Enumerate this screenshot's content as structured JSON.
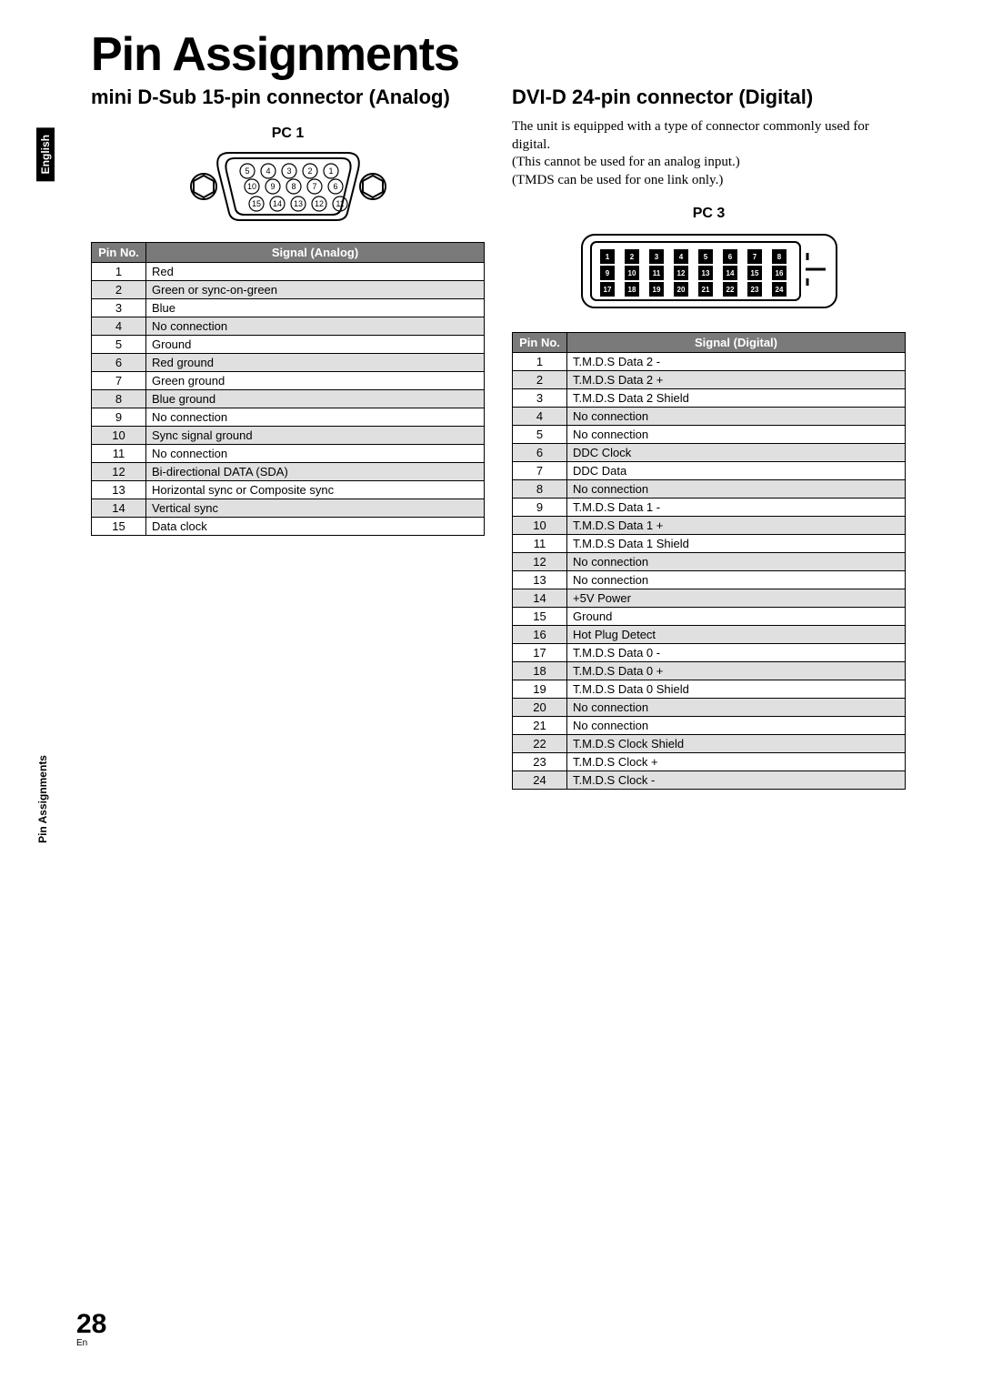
{
  "side_tabs": {
    "english": "English",
    "pin_assignments": "Pin Assignments"
  },
  "page_title": "Pin Assignments",
  "left": {
    "title": "mini D-Sub 15-pin connector (Analog)",
    "pc_label": "PC 1",
    "table_headers": {
      "pin": "Pin No.",
      "signal": "Signal (Analog)"
    },
    "pins": [
      {
        "n": "1",
        "s": "Red"
      },
      {
        "n": "2",
        "s": "Green or sync-on-green"
      },
      {
        "n": "3",
        "s": "Blue"
      },
      {
        "n": "4",
        "s": "No connection"
      },
      {
        "n": "5",
        "s": "Ground"
      },
      {
        "n": "6",
        "s": "Red ground"
      },
      {
        "n": "7",
        "s": "Green ground"
      },
      {
        "n": "8",
        "s": "Blue ground"
      },
      {
        "n": "9",
        "s": "No connection"
      },
      {
        "n": "10",
        "s": "Sync signal ground"
      },
      {
        "n": "11",
        "s": "No connection"
      },
      {
        "n": "12",
        "s": "Bi-directional DATA (SDA)"
      },
      {
        "n": "13",
        "s": "Horizontal sync or Composite sync"
      },
      {
        "n": "14",
        "s": "Vertical sync"
      },
      {
        "n": "15",
        "s": "Data clock"
      }
    ],
    "diagram": {
      "rows": [
        [
          "5",
          "4",
          "3",
          "2",
          "1"
        ],
        [
          "10",
          "9",
          "8",
          "7",
          "6"
        ],
        [
          "15",
          "14",
          "13",
          "12",
          "11"
        ]
      ]
    }
  },
  "right": {
    "title": "DVI-D 24-pin connector (Digital)",
    "body": [
      "The unit is equipped with a type of connector commonly used for digital.",
      "(This cannot be used for an analog input.)",
      "(TMDS can be used for one link only.)"
    ],
    "pc_label": "PC 3",
    "table_headers": {
      "pin": "Pin No.",
      "signal": "Signal (Digital)"
    },
    "pins": [
      {
        "n": "1",
        "s": "T.M.D.S Data 2 -"
      },
      {
        "n": "2",
        "s": "T.M.D.S Data 2 +"
      },
      {
        "n": "3",
        "s": "T.M.D.S Data 2 Shield"
      },
      {
        "n": "4",
        "s": "No connection"
      },
      {
        "n": "5",
        "s": "No connection"
      },
      {
        "n": "6",
        "s": "DDC Clock"
      },
      {
        "n": "7",
        "s": "DDC Data"
      },
      {
        "n": "8",
        "s": "No connection"
      },
      {
        "n": "9",
        "s": "T.M.D.S Data 1 -"
      },
      {
        "n": "10",
        "s": "T.M.D.S Data 1 +"
      },
      {
        "n": "11",
        "s": "T.M.D.S Data 1 Shield"
      },
      {
        "n": "12",
        "s": "No connection"
      },
      {
        "n": "13",
        "s": "No connection"
      },
      {
        "n": "14",
        "s": "+5V Power"
      },
      {
        "n": "15",
        "s": "Ground"
      },
      {
        "n": "16",
        "s": "Hot Plug Detect"
      },
      {
        "n": "17",
        "s": "T.M.D.S Data 0 -"
      },
      {
        "n": "18",
        "s": "T.M.D.S Data 0 +"
      },
      {
        "n": "19",
        "s": "T.M.D.S Data 0 Shield"
      },
      {
        "n": "20",
        "s": "No connection"
      },
      {
        "n": "21",
        "s": "No connection"
      },
      {
        "n": "22",
        "s": "T.M.D.S Clock Shield"
      },
      {
        "n": "23",
        "s": "T.M.D.S Clock +"
      },
      {
        "n": "24",
        "s": "T.M.D.S Clock -"
      }
    ],
    "diagram": {
      "rows": [
        [
          "1",
          "2",
          "3",
          "4",
          "5",
          "6",
          "7",
          "8"
        ],
        [
          "9",
          "10",
          "11",
          "12",
          "13",
          "14",
          "15",
          "16"
        ],
        [
          "17",
          "18",
          "19",
          "20",
          "21",
          "22",
          "23",
          "24"
        ]
      ]
    }
  },
  "page_number": "28",
  "page_lang": "En",
  "colors": {
    "header_bg": "#7a7a7a",
    "header_fg": "#ffffff",
    "shade_row": "#e0e0e0",
    "border": "#000000"
  }
}
